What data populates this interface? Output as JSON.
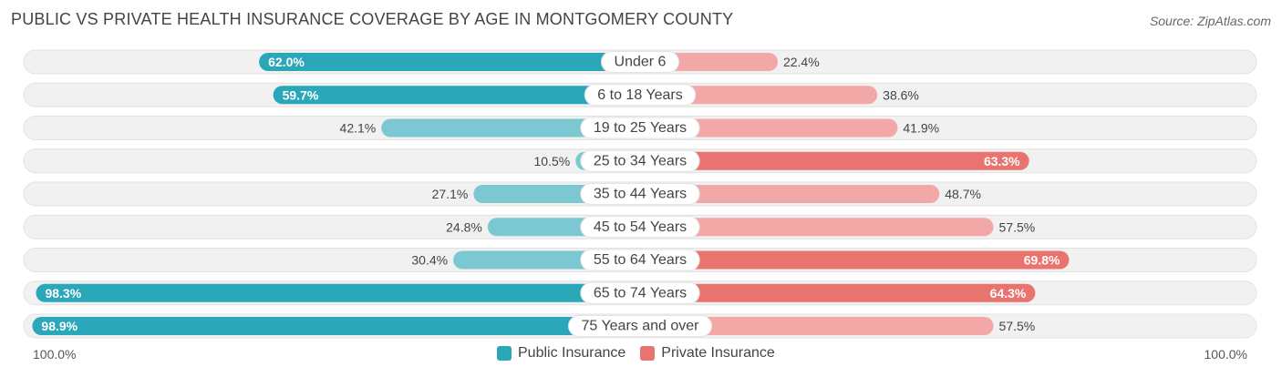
{
  "chart_data": {
    "type": "bar",
    "title": "PUBLIC VS PRIVATE HEALTH INSURANCE COVERAGE BY AGE IN MONTGOMERY COUNTY",
    "source": "Source: ZipAtlas.com",
    "categories": [
      "Under 6",
      "6 to 18 Years",
      "19 to 25 Years",
      "25 to 34 Years",
      "35 to 44 Years",
      "45 to 54 Years",
      "55 to 64 Years",
      "65 to 74 Years",
      "75 Years and over"
    ],
    "series": [
      {
        "name": "Public Insurance",
        "color": "#2aa7b8",
        "values": [
          62.0,
          59.7,
          42.1,
          10.5,
          27.1,
          24.8,
          30.4,
          98.3,
          98.9
        ],
        "labels": [
          "62.0%",
          "59.7%",
          "42.1%",
          "10.5%",
          "27.1%",
          "24.8%",
          "30.4%",
          "98.3%",
          "98.9%"
        ]
      },
      {
        "name": "Private Insurance",
        "color": "#e8736f",
        "values": [
          22.4,
          38.6,
          41.9,
          63.3,
          48.7,
          57.5,
          69.8,
          64.3,
          57.5
        ],
        "labels": [
          "22.4%",
          "38.6%",
          "41.9%",
          "63.3%",
          "48.7%",
          "57.5%",
          "69.8%",
          "64.3%",
          "57.5%"
        ]
      }
    ],
    "xlim": [
      0,
      100
    ],
    "axis_left_label": "100.0%",
    "axis_right_label": "100.0%",
    "legend_position": "bottom-center"
  }
}
